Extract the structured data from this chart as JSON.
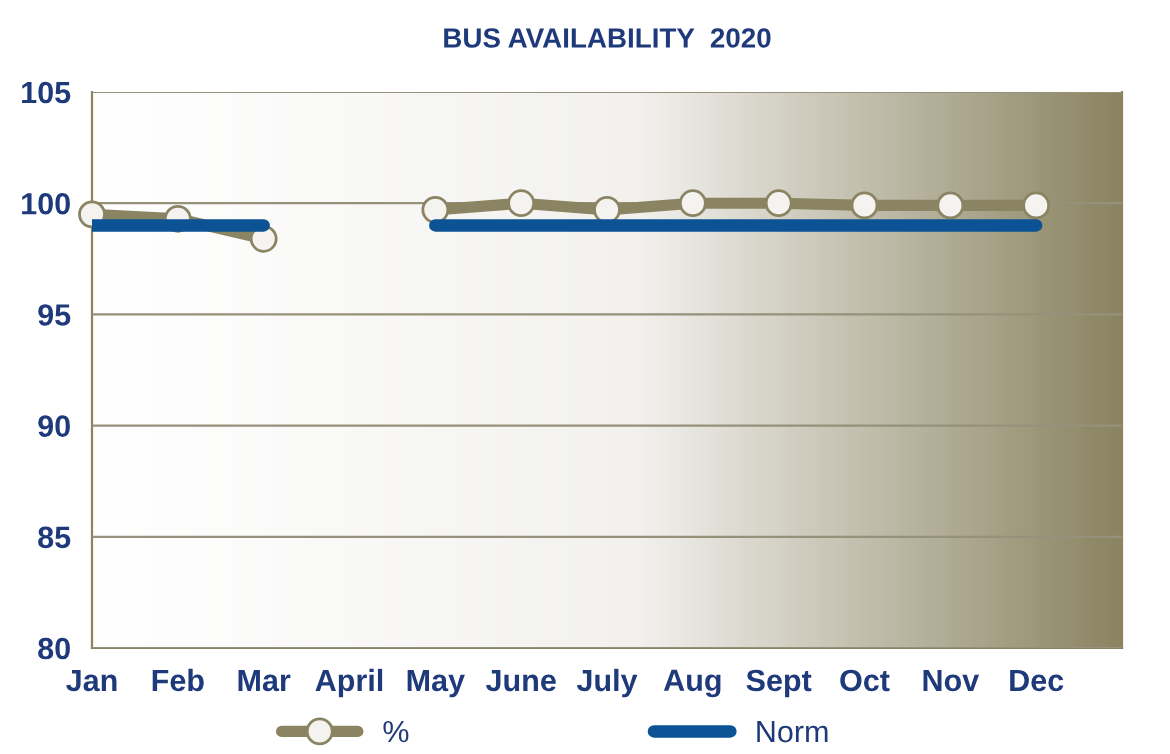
{
  "chart_data": {
    "type": "line",
    "title": "BUS AVAILABILITY  2020",
    "categories": [
      "Jan",
      "Feb",
      "Mar",
      "April",
      "May",
      "June",
      "July",
      "Aug",
      "Sept",
      "Oct",
      "Nov",
      "Dec"
    ],
    "series": [
      {
        "name": "%",
        "color": "#8b8462",
        "marker": "circle",
        "values": [
          99.5,
          99.3,
          98.4,
          null,
          99.7,
          100.0,
          99.7,
          100.0,
          100.0,
          99.9,
          99.9,
          99.9
        ]
      },
      {
        "name": "Norm",
        "color": "#0b5394",
        "marker": "none",
        "values": [
          99,
          99,
          99,
          null,
          99,
          99,
          99,
          99,
          99,
          99,
          99,
          99
        ]
      }
    ],
    "ylim": [
      80,
      105
    ],
    "yticks": [
      80,
      85,
      90,
      95,
      100,
      105
    ],
    "grid": "y",
    "legend": "bottom"
  }
}
